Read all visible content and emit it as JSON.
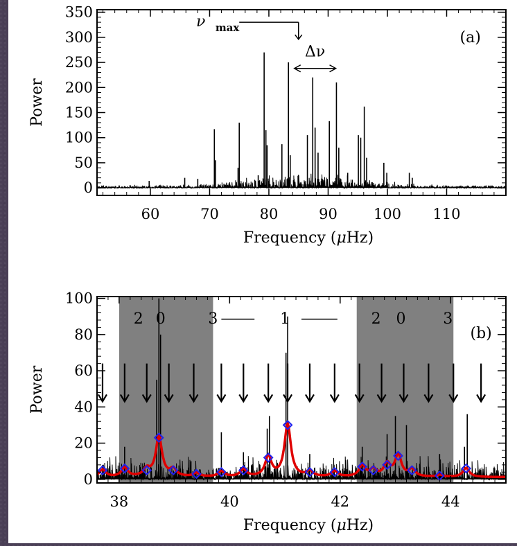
{
  "chart_data": [
    {
      "type": "line",
      "panel_label": "(a)",
      "xlabel": "Frequency (μHz)",
      "xlabel_parts": {
        "text": "Frequency (",
        "mu": "μ",
        "unit": "Hz)"
      },
      "ylabel": "Power",
      "xlim": [
        51,
        120
      ],
      "ylim": [
        -15,
        355
      ],
      "xticks": [
        60,
        70,
        80,
        90,
        100,
        110
      ],
      "xtick_labels": [
        "60",
        "70",
        "80",
        "90",
        "100",
        "110"
      ],
      "yticks": [
        0,
        50,
        100,
        150,
        200,
        250,
        300,
        350
      ],
      "ytick_labels": [
        "0",
        "50",
        "100",
        "150",
        "200",
        "250",
        "300",
        "350"
      ],
      "series": [
        {
          "peaks": [
            {
              "x": 70.8,
              "y": 117
            },
            {
              "x": 71.0,
              "y": 55
            },
            {
              "x": 75.0,
              "y": 130
            },
            {
              "x": 74.8,
              "y": 40
            },
            {
              "x": 78.2,
              "y": 25
            },
            {
              "x": 79.2,
              "y": 270
            },
            {
              "x": 79.5,
              "y": 115
            },
            {
              "x": 79.7,
              "y": 85
            },
            {
              "x": 82.2,
              "y": 87
            },
            {
              "x": 83.3,
              "y": 250
            },
            {
              "x": 83.6,
              "y": 65
            },
            {
              "x": 86.5,
              "y": 105
            },
            {
              "x": 87.4,
              "y": 220
            },
            {
              "x": 87.8,
              "y": 120
            },
            {
              "x": 88.3,
              "y": 70
            },
            {
              "x": 90.2,
              "y": 133
            },
            {
              "x": 91.4,
              "y": 210
            },
            {
              "x": 91.8,
              "y": 80
            },
            {
              "x": 93.3,
              "y": 30
            },
            {
              "x": 95.1,
              "y": 105
            },
            {
              "x": 95.5,
              "y": 100
            },
            {
              "x": 96.1,
              "y": 162
            },
            {
              "x": 96.5,
              "y": 60
            },
            {
              "x": 99.4,
              "y": 50
            },
            {
              "x": 99.9,
              "y": 30
            },
            {
              "x": 103.7,
              "y": 30
            },
            {
              "x": 104.2,
              "y": 20
            },
            {
              "x": 65.8,
              "y": 20
            },
            {
              "x": 59.8,
              "y": 14
            },
            {
              "x": 68.0,
              "y": 18
            }
          ]
        }
      ],
      "annotations": {
        "numax_symbol": "ν",
        "numax_sub": "max",
        "numax_value": 85,
        "delta_nu_label": "Δν",
        "delta_nu_range": [
          84.3,
          91.3
        ]
      }
    },
    {
      "type": "line",
      "panel_label": "(b)",
      "xlabel": "Frequency (μHz)",
      "xlabel_parts": {
        "text": "Frequency (",
        "mu": "μ",
        "unit": "Hz)"
      },
      "ylabel": "Power",
      "xlim": [
        37.6,
        45.0
      ],
      "ylim": [
        -2,
        101
      ],
      "xticks": [
        38,
        40,
        42,
        44
      ],
      "xtick_labels": [
        "38",
        "40",
        "42",
        "44"
      ],
      "yticks": [
        0,
        20,
        40,
        60,
        80,
        100
      ],
      "ytick_labels": [
        "0",
        "20",
        "40",
        "60",
        "80",
        "100"
      ],
      "shaded_regions": [
        [
          38.0,
          39.7
        ],
        [
          42.3,
          44.05
        ]
      ],
      "shade_color": "#808080",
      "mode_labels": [
        {
          "x": 38.35,
          "text": "2"
        },
        {
          "x": 38.75,
          "text": "0"
        },
        {
          "x": 39.7,
          "text": "3"
        },
        {
          "x": 41.0,
          "text": "1"
        },
        {
          "x": 42.65,
          "text": "2"
        },
        {
          "x": 43.1,
          "text": "0"
        },
        {
          "x": 43.95,
          "text": "3"
        }
      ],
      "dash_segments": [
        [
          39.85,
          40.45
        ],
        [
          41.3,
          41.95
        ]
      ],
      "arrow_positions": [
        37.7,
        38.1,
        38.5,
        38.9,
        39.35,
        39.85,
        40.25,
        40.7,
        41.05,
        41.45,
        41.9,
        42.35,
        42.75,
        43.15,
        43.6,
        44.05,
        44.55
      ],
      "raw_peaks": [
        {
          "x": 38.72,
          "y": 100
        },
        {
          "x": 38.75,
          "y": 80
        },
        {
          "x": 38.68,
          "y": 55
        },
        {
          "x": 41.05,
          "y": 90
        },
        {
          "x": 41.02,
          "y": 70
        },
        {
          "x": 40.72,
          "y": 35
        },
        {
          "x": 40.68,
          "y": 28
        },
        {
          "x": 40.25,
          "y": 15
        },
        {
          "x": 39.85,
          "y": 26
        },
        {
          "x": 38.1,
          "y": 18
        },
        {
          "x": 43.0,
          "y": 35
        },
        {
          "x": 43.2,
          "y": 30
        },
        {
          "x": 42.85,
          "y": 25
        },
        {
          "x": 44.3,
          "y": 36
        },
        {
          "x": 44.25,
          "y": 18
        },
        {
          "x": 43.8,
          "y": 14
        },
        {
          "x": 42.4,
          "y": 18
        },
        {
          "x": 37.7,
          "y": 8
        },
        {
          "x": 41.45,
          "y": 14
        },
        {
          "x": 39.3,
          "y": 10
        }
      ],
      "fit_points": [
        {
          "x": 37.7,
          "y": 5
        },
        {
          "x": 38.1,
          "y": 6
        },
        {
          "x": 38.5,
          "y": 5
        },
        {
          "x": 38.72,
          "y": 23
        },
        {
          "x": 38.98,
          "y": 5
        },
        {
          "x": 39.4,
          "y": 3
        },
        {
          "x": 39.85,
          "y": 4
        },
        {
          "x": 40.25,
          "y": 5
        },
        {
          "x": 40.7,
          "y": 12
        },
        {
          "x": 41.05,
          "y": 30
        },
        {
          "x": 41.45,
          "y": 4
        },
        {
          "x": 41.9,
          "y": 4
        },
        {
          "x": 42.4,
          "y": 7
        },
        {
          "x": 42.6,
          "y": 5
        },
        {
          "x": 42.85,
          "y": 8
        },
        {
          "x": 43.05,
          "y": 13
        },
        {
          "x": 43.3,
          "y": 5
        },
        {
          "x": 43.8,
          "y": 2
        },
        {
          "x": 44.28,
          "y": 6
        }
      ],
      "fit_color": "#e00000",
      "marker_color": "#2020ee"
    }
  ]
}
